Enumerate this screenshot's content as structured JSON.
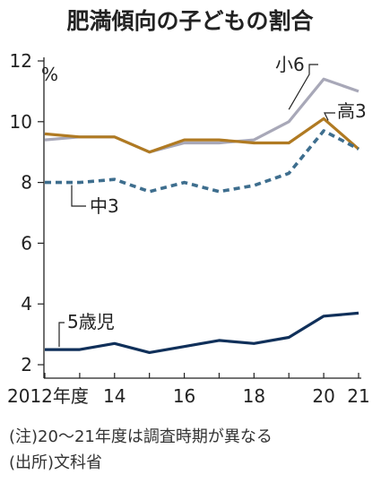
{
  "chart_data": {
    "type": "line",
    "title": "肥満傾向の子どもの割合",
    "ylabel": "%",
    "ylim": [
      2,
      12
    ],
    "yticks": [
      2,
      4,
      6,
      8,
      10,
      12
    ],
    "x": [
      2012,
      2013,
      2014,
      2015,
      2016,
      2017,
      2018,
      2019,
      2020,
      2021
    ],
    "xtick_labels": [
      {
        "x": 2012,
        "label": "2012年度"
      },
      {
        "x": 2014,
        "label": "14"
      },
      {
        "x": 2016,
        "label": "16"
      },
      {
        "x": 2018,
        "label": "18"
      },
      {
        "x": 2020,
        "label": "20"
      },
      {
        "x": 2021,
        "label": "21"
      }
    ],
    "series": [
      {
        "name": "小6",
        "color": "#a8a8b8",
        "style": "solid",
        "values": [
          9.4,
          9.5,
          9.5,
          9.0,
          9.3,
          9.3,
          9.4,
          10.0,
          11.4,
          11.0
        ]
      },
      {
        "name": "高3",
        "color": "#b07a22",
        "style": "solid",
        "values": [
          9.6,
          9.5,
          9.5,
          9.0,
          9.4,
          9.4,
          9.3,
          9.3,
          10.1,
          9.1
        ]
      },
      {
        "name": "中3",
        "color": "#3e6e8e",
        "style": "dashed",
        "values": [
          8.0,
          8.0,
          8.1,
          7.7,
          8.0,
          7.7,
          7.9,
          8.3,
          9.7,
          9.1
        ]
      },
      {
        "name": "5歳児",
        "color": "#10305a",
        "style": "solid",
        "values": [
          2.5,
          2.5,
          2.7,
          2.4,
          2.6,
          2.8,
          2.7,
          2.9,
          3.6,
          3.7
        ]
      }
    ],
    "notes": [
      "(注)20〜21年度は調査時期が異なる",
      "(出所)文科省"
    ]
  }
}
